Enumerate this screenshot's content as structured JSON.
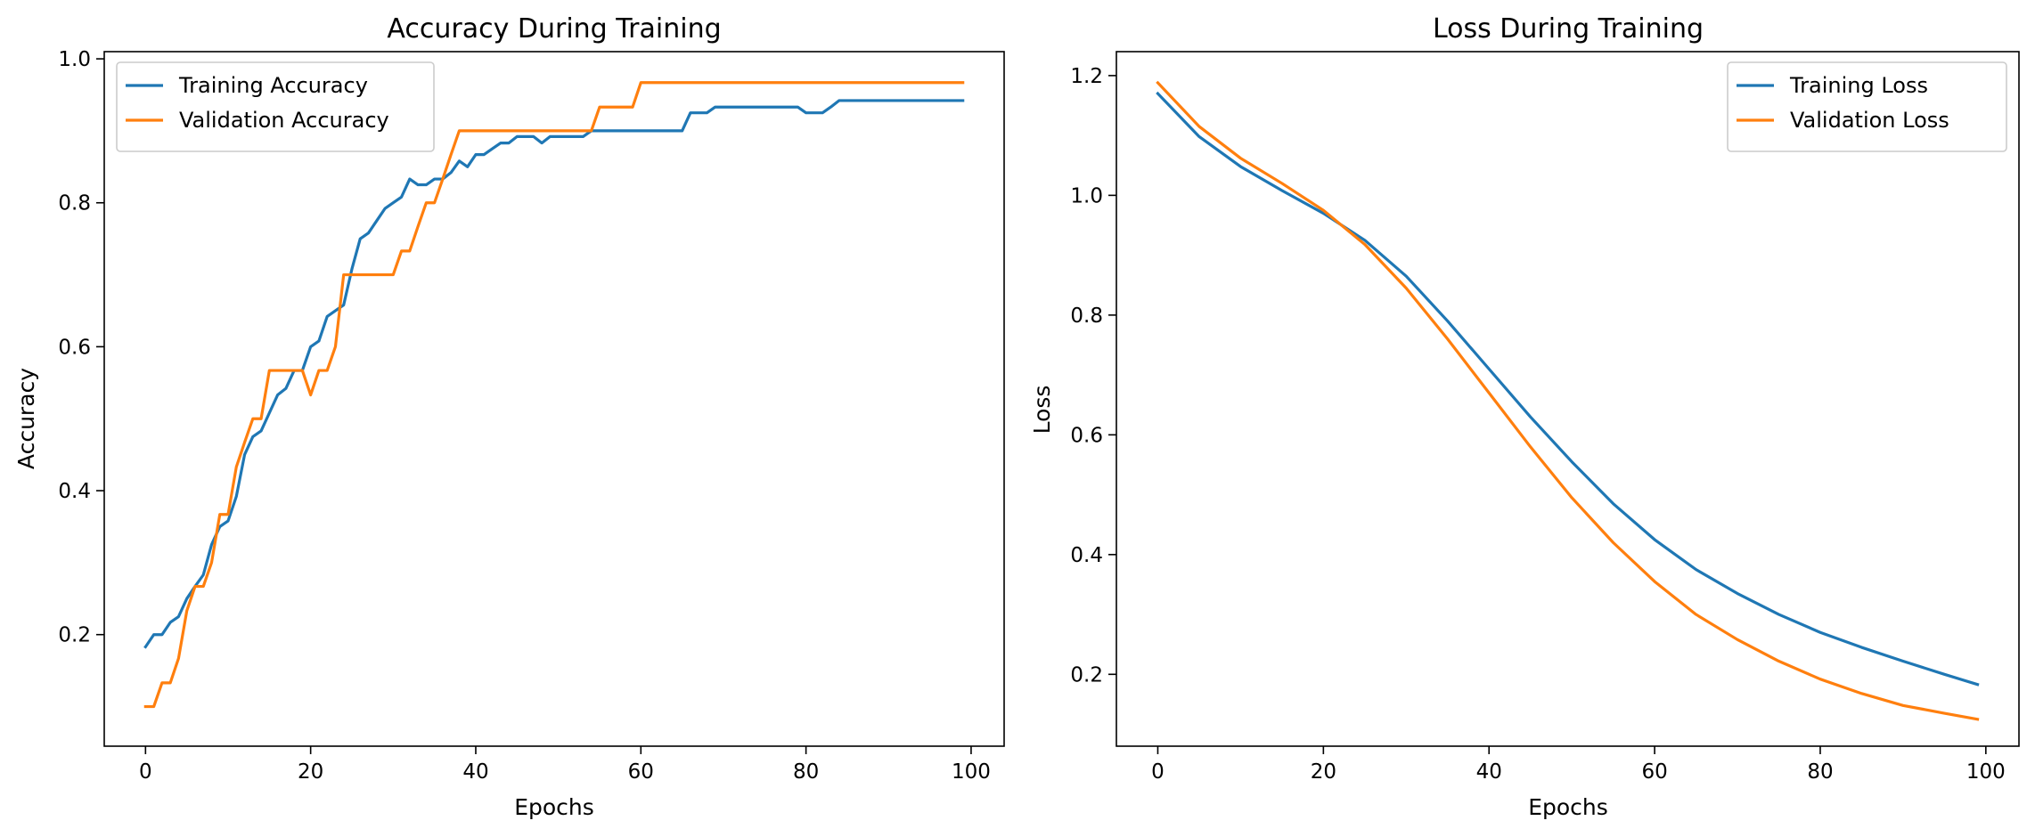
{
  "chart_data": [
    {
      "type": "line",
      "title": "Accuracy During Training",
      "xlabel": "Epochs",
      "ylabel": "Accuracy",
      "xlim": [
        -5,
        104
      ],
      "ylim": [
        0.045,
        1.01
      ],
      "xticks": [
        0,
        20,
        40,
        60,
        80,
        100
      ],
      "yticks": [
        0.2,
        0.4,
        0.6,
        0.8,
        1.0
      ],
      "xtick_labels": [
        "0",
        "20",
        "40",
        "60",
        "80",
        "100"
      ],
      "ytick_labels": [
        "0.2",
        "0.4",
        "0.6",
        "0.8",
        "1.0"
      ],
      "grid": false,
      "legend_position": "top-left",
      "series": [
        {
          "name": "Training Accuracy",
          "color": "#1f77b4",
          "x": [
            0,
            1,
            2,
            3,
            4,
            5,
            6,
            7,
            8,
            9,
            10,
            11,
            12,
            13,
            14,
            15,
            16,
            17,
            18,
            19,
            20,
            21,
            22,
            23,
            24,
            25,
            26,
            27,
            28,
            29,
            30,
            31,
            32,
            33,
            34,
            35,
            36,
            37,
            38,
            39,
            40,
            41,
            42,
            43,
            44,
            45,
            46,
            47,
            48,
            49,
            50,
            51,
            52,
            53,
            54,
            55,
            56,
            57,
            58,
            59,
            60,
            61,
            62,
            63,
            64,
            65,
            66,
            67,
            68,
            69,
            70,
            71,
            72,
            73,
            74,
            75,
            76,
            77,
            78,
            79,
            80,
            81,
            82,
            83,
            84,
            85,
            86,
            87,
            88,
            89,
            90,
            91,
            92,
            93,
            94,
            95,
            96,
            97,
            98,
            99
          ],
          "y": [
            0.183,
            0.2,
            0.2,
            0.217,
            0.225,
            0.25,
            0.267,
            0.283,
            0.325,
            0.35,
            0.358,
            0.392,
            0.45,
            0.475,
            0.483,
            0.508,
            0.533,
            0.542,
            0.567,
            0.567,
            0.6,
            0.608,
            0.642,
            0.65,
            0.658,
            0.708,
            0.75,
            0.758,
            0.775,
            0.792,
            0.8,
            0.808,
            0.833,
            0.825,
            0.825,
            0.833,
            0.833,
            0.842,
            0.858,
            0.85,
            0.867,
            0.867,
            0.875,
            0.883,
            0.883,
            0.892,
            0.892,
            0.892,
            0.883,
            0.892,
            0.892,
            0.892,
            0.892,
            0.892,
            0.9,
            0.9,
            0.9,
            0.9,
            0.9,
            0.9,
            0.9,
            0.9,
            0.9,
            0.9,
            0.9,
            0.9,
            0.925,
            0.925,
            0.925,
            0.933,
            0.933,
            0.933,
            0.933,
            0.933,
            0.933,
            0.933,
            0.933,
            0.933,
            0.933,
            0.933,
            0.925,
            0.925,
            0.925,
            0.933,
            0.942,
            0.942,
            0.942,
            0.942,
            0.942,
            0.942,
            0.942,
            0.942,
            0.942,
            0.942,
            0.942,
            0.942,
            0.942,
            0.942,
            0.942,
            0.942
          ]
        },
        {
          "name": "Validation Accuracy",
          "color": "#ff7f0e",
          "x": [
            0,
            1,
            2,
            3,
            4,
            5,
            6,
            7,
            8,
            9,
            10,
            11,
            12,
            13,
            14,
            15,
            16,
            17,
            18,
            19,
            20,
            21,
            22,
            23,
            24,
            25,
            26,
            27,
            28,
            29,
            30,
            31,
            32,
            33,
            34,
            35,
            36,
            37,
            38,
            39,
            40,
            41,
            42,
            43,
            44,
            45,
            46,
            47,
            48,
            49,
            50,
            51,
            52,
            53,
            54,
            55,
            56,
            57,
            58,
            59,
            60,
            61,
            62,
            63,
            64,
            65,
            66,
            67,
            68,
            69,
            70,
            71,
            72,
            73,
            74,
            75,
            76,
            77,
            78,
            79,
            80,
            81,
            82,
            83,
            84,
            85,
            86,
            87,
            88,
            89,
            90,
            91,
            92,
            93,
            94,
            95,
            96,
            97,
            98,
            99
          ],
          "y": [
            0.1,
            0.1,
            0.133,
            0.133,
            0.167,
            0.233,
            0.267,
            0.267,
            0.3,
            0.367,
            0.367,
            0.433,
            0.467,
            0.5,
            0.5,
            0.567,
            0.567,
            0.567,
            0.567,
            0.567,
            0.533,
            0.567,
            0.567,
            0.6,
            0.7,
            0.7,
            0.7,
            0.7,
            0.7,
            0.7,
            0.7,
            0.733,
            0.733,
            0.767,
            0.8,
            0.8,
            0.833,
            0.867,
            0.9,
            0.9,
            0.9,
            0.9,
            0.9,
            0.9,
            0.9,
            0.9,
            0.9,
            0.9,
            0.9,
            0.9,
            0.9,
            0.9,
            0.9,
            0.9,
            0.9,
            0.933,
            0.933,
            0.933,
            0.933,
            0.933,
            0.967,
            0.967,
            0.967,
            0.967,
            0.967,
            0.967,
            0.967,
            0.967,
            0.967,
            0.967,
            0.967,
            0.967,
            0.967,
            0.967,
            0.967,
            0.967,
            0.967,
            0.967,
            0.967,
            0.967,
            0.967,
            0.967,
            0.967,
            0.967,
            0.967,
            0.967,
            0.967,
            0.967,
            0.967,
            0.967,
            0.967,
            0.967,
            0.967,
            0.967,
            0.967,
            0.967,
            0.967,
            0.967,
            0.967,
            0.967
          ]
        }
      ]
    },
    {
      "type": "line",
      "title": "Loss During Training",
      "xlabel": "Epochs",
      "ylabel": "Loss",
      "xlim": [
        -5,
        104
      ],
      "ylim": [
        0.08,
        1.24
      ],
      "xticks": [
        0,
        20,
        40,
        60,
        80,
        100
      ],
      "yticks": [
        0.2,
        0.4,
        0.6,
        0.8,
        1.0,
        1.2
      ],
      "xtick_labels": [
        "0",
        "20",
        "40",
        "60",
        "80",
        "100"
      ],
      "ytick_labels": [
        "0.2",
        "0.4",
        "0.6",
        "0.8",
        "1.0",
        "1.2"
      ],
      "grid": false,
      "legend_position": "top-right",
      "series": [
        {
          "name": "Training Loss",
          "color": "#1f77b4",
          "x": [
            0,
            5,
            10,
            15,
            20,
            25,
            30,
            35,
            40,
            45,
            50,
            55,
            60,
            65,
            70,
            75,
            80,
            85,
            90,
            95,
            99
          ],
          "y": [
            1.17,
            1.098,
            1.048,
            1.008,
            0.97,
            0.925,
            0.865,
            0.79,
            0.71,
            0.63,
            0.555,
            0.485,
            0.425,
            0.375,
            0.335,
            0.3,
            0.27,
            0.245,
            0.222,
            0.2,
            0.183
          ]
        },
        {
          "name": "Validation Loss",
          "color": "#ff7f0e",
          "x": [
            0,
            5,
            10,
            15,
            20,
            25,
            30,
            35,
            40,
            45,
            50,
            55,
            60,
            65,
            70,
            75,
            80,
            85,
            90,
            95,
            99
          ],
          "y": [
            1.188,
            1.115,
            1.062,
            1.02,
            0.975,
            0.918,
            0.845,
            0.76,
            0.67,
            0.58,
            0.495,
            0.42,
            0.355,
            0.3,
            0.258,
            0.222,
            0.192,
            0.168,
            0.148,
            0.135,
            0.125
          ]
        }
      ]
    }
  ]
}
